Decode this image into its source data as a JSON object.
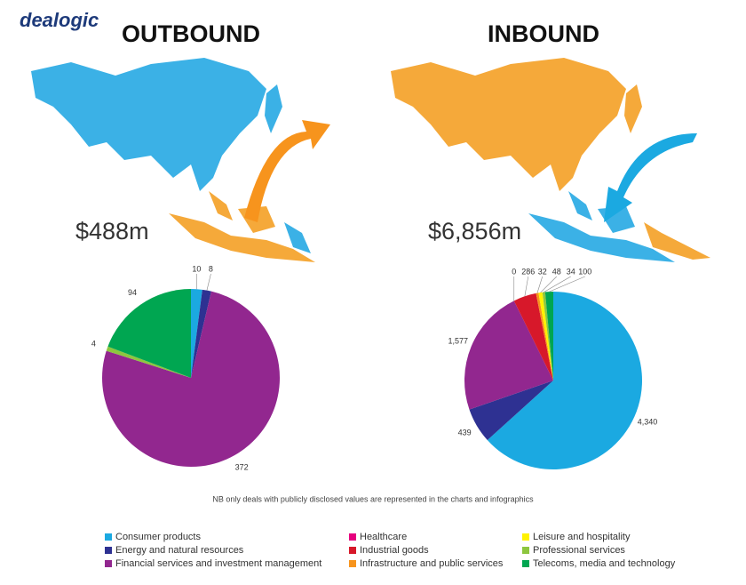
{
  "brand": "dealogic",
  "note": "NB only deals with publicly disclosed values are represented in the charts and infographics",
  "legend": [
    {
      "name": "Consumer products",
      "color": "#1ba9e1"
    },
    {
      "name": "Energy and natural resources",
      "color": "#2e3192"
    },
    {
      "name": "Financial services and investment management",
      "color": "#92278f"
    },
    {
      "name": "Healthcare",
      "color": "#e6007e"
    },
    {
      "name": "Industrial goods",
      "color": "#d7182a"
    },
    {
      "name": "Infrastructure and public services",
      "color": "#f7941d"
    },
    {
      "name": "Leisure and hospitality",
      "color": "#fff200"
    },
    {
      "name": "Professional services",
      "color": "#8dc63f"
    },
    {
      "name": "Telecoms, media and technology",
      "color": "#00a651"
    }
  ],
  "chart_data": [
    {
      "type": "pie",
      "title": "OUTBOUND",
      "total": "$488m",
      "categories": [
        "Consumer products",
        "Energy and natural resources",
        "Financial services and investment management",
        "Professional services",
        "Telecoms, media and technology"
      ],
      "values": [
        10,
        8,
        372,
        4,
        94
      ],
      "colors": [
        "#1ba9e1",
        "#2e3192",
        "#92278f",
        "#8dc63f",
        "#00a651"
      ]
    },
    {
      "type": "pie",
      "title": "INBOUND",
      "total": "$6,856m",
      "categories": [
        "Consumer products",
        "Energy and natural resources",
        "Financial services and investment management",
        "Healthcare",
        "Industrial goods",
        "Infrastructure and public services",
        "Leisure and hospitality",
        "Professional services",
        "Telecoms, media and technology"
      ],
      "values": [
        4340,
        439,
        1577,
        0,
        286,
        32,
        48,
        34,
        100
      ],
      "value_labels": [
        "4,340",
        "439",
        "1,577",
        "0",
        "286",
        "32",
        "48",
        "34",
        "100"
      ],
      "colors": [
        "#1ba9e1",
        "#2e3192",
        "#92278f",
        "#e6007e",
        "#d7182a",
        "#f7941d",
        "#fff200",
        "#8dc63f",
        "#00a651"
      ]
    }
  ]
}
